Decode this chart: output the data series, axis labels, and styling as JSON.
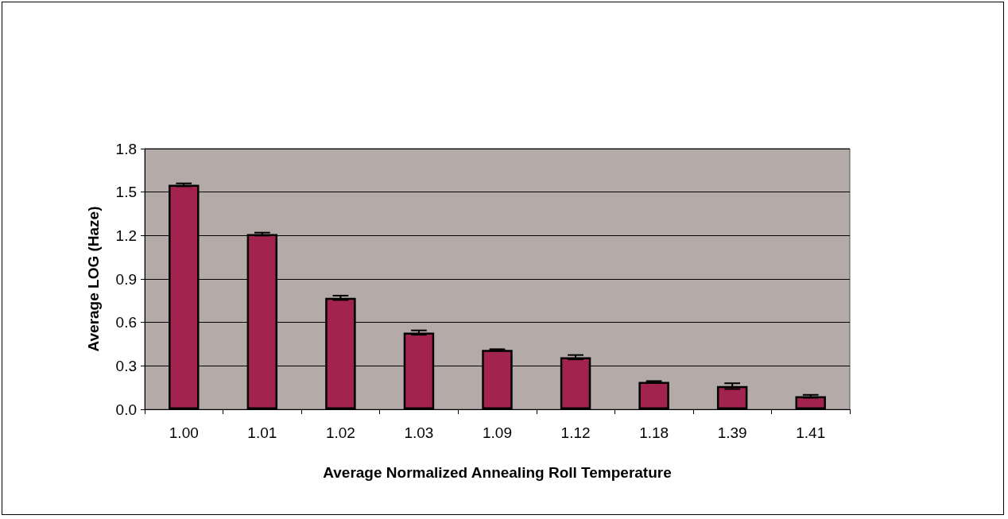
{
  "chart_data": {
    "type": "bar",
    "xlabel": "Average Normalized Annealing Roll Temperature",
    "ylabel": "Average LOG (Haze)",
    "categories": [
      "1.00",
      "1.01",
      "1.02",
      "1.03",
      "1.09",
      "1.12",
      "1.18",
      "1.39",
      "1.41"
    ],
    "values": [
      1.55,
      1.21,
      0.77,
      0.53,
      0.41,
      0.36,
      0.19,
      0.16,
      0.09
    ],
    "errors": [
      0.01,
      0.01,
      0.015,
      0.015,
      0.005,
      0.015,
      0.005,
      0.02,
      0.01
    ],
    "color": "#a2244e",
    "ylim": [
      0,
      1.8
    ],
    "yticks": [
      {
        "value": 0,
        "label": "0.0"
      },
      {
        "value": 0.3,
        "label": "0.3"
      },
      {
        "value": 0.6,
        "label": "0.6"
      },
      {
        "value": 0.9,
        "label": "0.9"
      },
      {
        "value": 1.2,
        "label": "1.2"
      },
      {
        "value": 1.5,
        "label": "1.5"
      },
      {
        "value": 1.8,
        "label": "1.8"
      }
    ],
    "grid": "y"
  }
}
